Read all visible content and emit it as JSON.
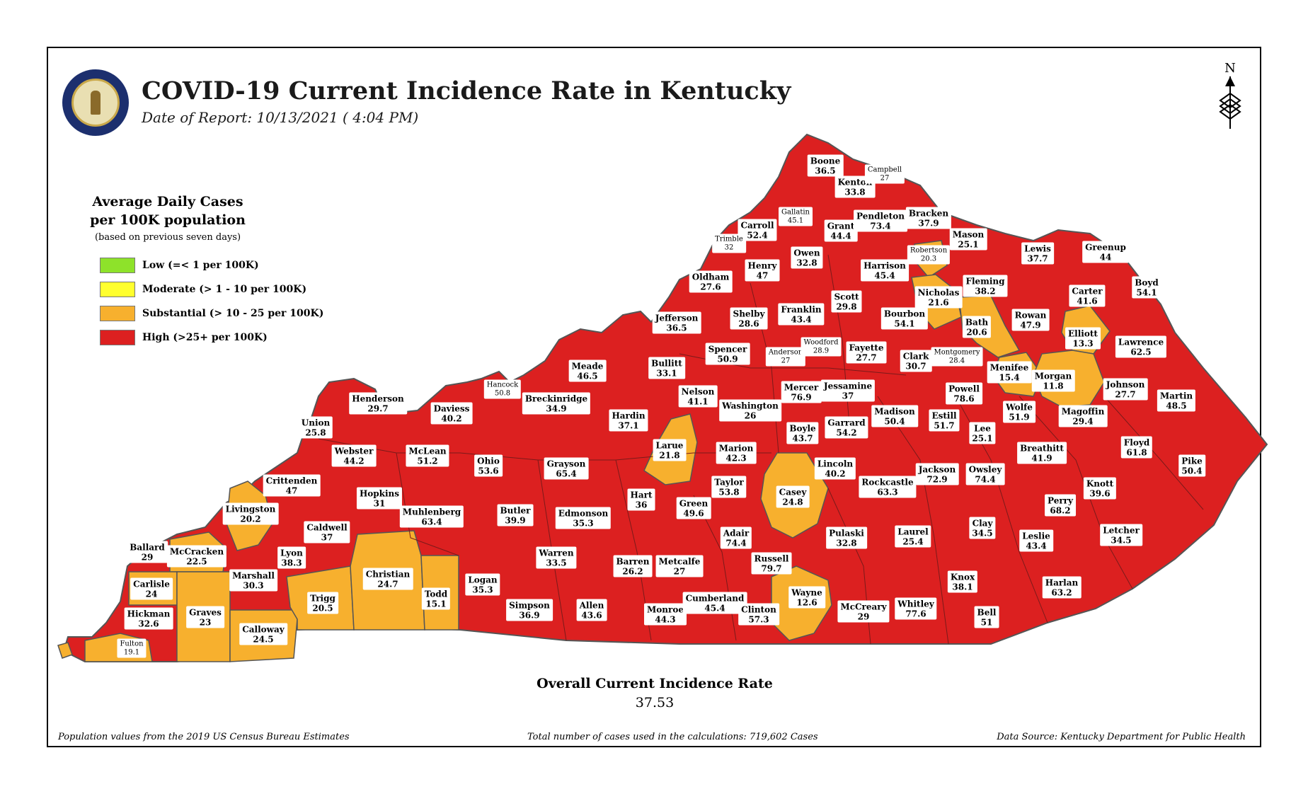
{
  "header": {
    "title": "COVID-19 Current Incidence Rate in Kentucky",
    "date_of_report": "Date of Report: 10/13/2021 ( 4:04 PM)"
  },
  "north_arrow": {
    "letter": "N"
  },
  "legend": {
    "title_line1": "Average Daily Cases",
    "title_line2": "per 100K population",
    "note": "(based on previous seven days)",
    "items": [
      {
        "label": "Low (=< 1 per 100K)",
        "color": "#8ee22a"
      },
      {
        "label": "Moderate (> 1 - 10 per 100K)",
        "color": "#ffff2e"
      },
      {
        "label": "Substantial (> 10 - 25 per 100K)",
        "color": "#f7b02e"
      },
      {
        "label": "High (>25+ per 100K)",
        "color": "#dc2020"
      }
    ]
  },
  "colors": {
    "high": "#dc2020",
    "substantial": "#f7b02e",
    "border": "#555555"
  },
  "counties": [
    {
      "name": "Boone",
      "value": "36.5"
    },
    {
      "name": "Kenton",
      "value": "33.8"
    },
    {
      "name": "Campbell",
      "value": "27"
    },
    {
      "name": "Gallatin",
      "value": "45.1"
    },
    {
      "name": "Carroll",
      "value": "52.4"
    },
    {
      "name": "Trimble",
      "value": "32"
    },
    {
      "name": "Grant",
      "value": "44.4"
    },
    {
      "name": "Pendleton",
      "value": "73.4"
    },
    {
      "name": "Bracken",
      "value": "37.9"
    },
    {
      "name": "Mason",
      "value": "25.1"
    },
    {
      "name": "Robertson",
      "value": "20.3"
    },
    {
      "name": "Lewis",
      "value": "37.7"
    },
    {
      "name": "Greenup",
      "value": "44"
    },
    {
      "name": "Boyd",
      "value": "54.1"
    },
    {
      "name": "Owen",
      "value": "32.8"
    },
    {
      "name": "Henry",
      "value": "47"
    },
    {
      "name": "Oldham",
      "value": "27.6"
    },
    {
      "name": "Harrison",
      "value": "45.4"
    },
    {
      "name": "Nicholas",
      "value": "21.6"
    },
    {
      "name": "Fleming",
      "value": "38.2"
    },
    {
      "name": "Carter",
      "value": "41.6"
    },
    {
      "name": "Jefferson",
      "value": "36.5"
    },
    {
      "name": "Shelby",
      "value": "28.6"
    },
    {
      "name": "Franklin",
      "value": "43.4"
    },
    {
      "name": "Scott",
      "value": "29.8"
    },
    {
      "name": "Bourbon",
      "value": "54.1"
    },
    {
      "name": "Bath",
      "value": "20.6"
    },
    {
      "name": "Rowan",
      "value": "47.9"
    },
    {
      "name": "Elliott",
      "value": "13.3"
    },
    {
      "name": "Lawrence",
      "value": "62.5"
    },
    {
      "name": "Spencer",
      "value": "50.9"
    },
    {
      "name": "Anderson",
      "value": "27"
    },
    {
      "name": "Woodford",
      "value": "28.9"
    },
    {
      "name": "Fayette",
      "value": "27.7"
    },
    {
      "name": "Clark",
      "value": "30.7"
    },
    {
      "name": "Montgomery",
      "value": "28.4"
    },
    {
      "name": "Menifee",
      "value": "15.4"
    },
    {
      "name": "Morgan",
      "value": "11.8"
    },
    {
      "name": "Johnson",
      "value": "27.7"
    },
    {
      "name": "Martin",
      "value": "48.5"
    },
    {
      "name": "Meade",
      "value": "46.5"
    },
    {
      "name": "Bullitt",
      "value": "33.1"
    },
    {
      "name": "Hancock",
      "value": "50.8"
    },
    {
      "name": "Henderson",
      "value": "29.7"
    },
    {
      "name": "Daviess",
      "value": "40.2"
    },
    {
      "name": "Breckinridge",
      "value": "34.9"
    },
    {
      "name": "Nelson",
      "value": "41.1"
    },
    {
      "name": "Washington",
      "value": "26"
    },
    {
      "name": "Mercer",
      "value": "76.9"
    },
    {
      "name": "Jessamine",
      "value": "37"
    },
    {
      "name": "Madison",
      "value": "50.4"
    },
    {
      "name": "Powell",
      "value": "78.6"
    },
    {
      "name": "Estill",
      "value": "51.7"
    },
    {
      "name": "Wolfe",
      "value": "51.9"
    },
    {
      "name": "Magoffin",
      "value": "29.4"
    },
    {
      "name": "Union",
      "value": "25.8"
    },
    {
      "name": "Hardin",
      "value": "37.1"
    },
    {
      "name": "Boyle",
      "value": "43.7"
    },
    {
      "name": "Garrard",
      "value": "54.2"
    },
    {
      "name": "Lee",
      "value": "25.1"
    },
    {
      "name": "Breathitt",
      "value": "41.9"
    },
    {
      "name": "Floyd",
      "value": "61.8"
    },
    {
      "name": "Webster",
      "value": "44.2"
    },
    {
      "name": "McLean",
      "value": "51.2"
    },
    {
      "name": "Larue",
      "value": "21.8"
    },
    {
      "name": "Marion",
      "value": "42.3"
    },
    {
      "name": "Ohio",
      "value": "53.6"
    },
    {
      "name": "Grayson",
      "value": "65.4"
    },
    {
      "name": "Lincoln",
      "value": "40.2"
    },
    {
      "name": "Jackson",
      "value": "72.9"
    },
    {
      "name": "Owsley",
      "value": "74.4"
    },
    {
      "name": "Pike",
      "value": "50.4"
    },
    {
      "name": "Crittenden",
      "value": "47"
    },
    {
      "name": "Hopkins",
      "value": "31"
    },
    {
      "name": "Rockcastle",
      "value": "63.3"
    },
    {
      "name": "Taylor",
      "value": "53.8"
    },
    {
      "name": "Casey",
      "value": "24.8"
    },
    {
      "name": "Knott",
      "value": "39.6"
    },
    {
      "name": "Livingston",
      "value": "20.2"
    },
    {
      "name": "Hart",
      "value": "36"
    },
    {
      "name": "Green",
      "value": "49.6"
    },
    {
      "name": "Perry",
      "value": "68.2"
    },
    {
      "name": "Muhlenberg",
      "value": "63.4"
    },
    {
      "name": "Butler",
      "value": "39.9"
    },
    {
      "name": "Edmonson",
      "value": "35.3"
    },
    {
      "name": "Caldwell",
      "value": "37"
    },
    {
      "name": "Adair",
      "value": "74.4"
    },
    {
      "name": "Pulaski",
      "value": "32.8"
    },
    {
      "name": "Laurel",
      "value": "25.4"
    },
    {
      "name": "Clay",
      "value": "34.5"
    },
    {
      "name": "Leslie",
      "value": "43.4"
    },
    {
      "name": "Letcher",
      "value": "34.5"
    },
    {
      "name": "Ballard",
      "value": "29"
    },
    {
      "name": "McCracken",
      "value": "22.5"
    },
    {
      "name": "Lyon",
      "value": "38.3"
    },
    {
      "name": "Marshall",
      "value": "30.3"
    },
    {
      "name": "Christian",
      "value": "24.7"
    },
    {
      "name": "Warren",
      "value": "33.5"
    },
    {
      "name": "Barren",
      "value": "26.2"
    },
    {
      "name": "Metcalfe",
      "value": "27"
    },
    {
      "name": "Russell",
      "value": "79.7"
    },
    {
      "name": "Wayne",
      "value": "12.6"
    },
    {
      "name": "Knox",
      "value": "38.1"
    },
    {
      "name": "Harlan",
      "value": "63.2"
    },
    {
      "name": "Carlisle",
      "value": "24"
    },
    {
      "name": "Trigg",
      "value": "20.5"
    },
    {
      "name": "Todd",
      "value": "15.1"
    },
    {
      "name": "Logan",
      "value": "35.3"
    },
    {
      "name": "Simpson",
      "value": "36.9"
    },
    {
      "name": "Allen",
      "value": "43.6"
    },
    {
      "name": "Monroe",
      "value": "44.3"
    },
    {
      "name": "Cumberland",
      "value": "45.4"
    },
    {
      "name": "Clinton",
      "value": "57.3"
    },
    {
      "name": "McCreary",
      "value": "29"
    },
    {
      "name": "Whitley",
      "value": "77.6"
    },
    {
      "name": "Bell",
      "value": "51"
    },
    {
      "name": "Hickman",
      "value": "32.6"
    },
    {
      "name": "Graves",
      "value": "23"
    },
    {
      "name": "Calloway",
      "value": "24.5"
    },
    {
      "name": "Fulton",
      "value": "19.1"
    }
  ],
  "overall": {
    "title": "Overall Current Incidence Rate",
    "value": "37.53"
  },
  "footer": {
    "left": "Population values from the 2019 US Census Bureau Estimates",
    "center": "Total number of cases used in the calculations: 719,602 Cases",
    "right": "Data Source: Kentucky Department for Public Health"
  }
}
